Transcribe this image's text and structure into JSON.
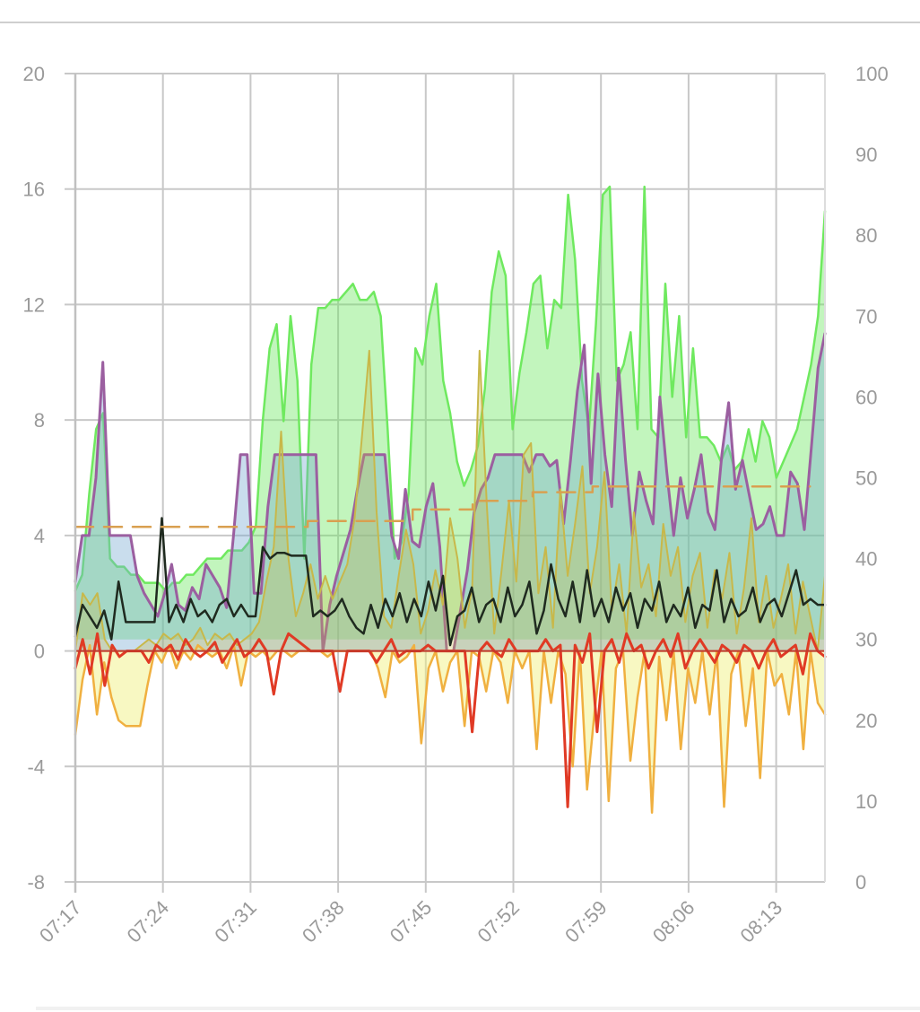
{
  "chart_data": {
    "type": "area",
    "x_ticks": [
      "07:17",
      "07:24",
      "07:31",
      "07:38",
      "07:45",
      "07:52",
      "07:59",
      "08:06",
      "08:13"
    ],
    "y_left": {
      "ticks": [
        "20",
        "16",
        "12",
        "8",
        "4",
        "0",
        "-4",
        "-8"
      ],
      "ylim": [
        -8,
        20
      ]
    },
    "y_right": {
      "ticks": [
        "100",
        "90",
        "80",
        "70",
        "60",
        "50",
        "40",
        "30",
        "20",
        "10",
        "0"
      ],
      "ylim": [
        0,
        100
      ]
    },
    "grid": true,
    "legend": "none",
    "colors": {
      "green": "#66e65a",
      "purple": "#9b5fa0",
      "olive": "#c8b84a",
      "yellow": "#f2c040",
      "red": "#e03020",
      "black": "#1f2a1f",
      "dashed": "#d9a050",
      "blue": "#3344dd",
      "pink": "#e8a0a0"
    },
    "series": [
      {
        "color_key": "green",
        "axis": "right",
        "fill": true,
        "values": [
          36,
          38,
          48,
          56,
          58,
          40,
          39,
          39,
          38,
          38,
          37,
          37,
          37,
          36,
          37,
          37,
          38,
          38,
          39,
          40,
          40,
          40,
          41,
          41,
          41,
          42,
          44,
          57,
          66,
          69,
          57,
          70,
          62,
          40,
          64,
          71,
          71,
          72,
          72,
          73,
          74,
          72,
          72,
          73,
          70,
          56,
          40,
          42,
          48,
          66,
          64,
          70,
          74,
          62,
          58,
          52,
          49,
          51,
          54,
          61,
          73,
          78,
          75,
          56,
          63,
          68,
          74,
          75,
          66,
          72,
          71,
          85,
          77,
          62,
          56,
          69,
          85,
          86,
          62,
          64,
          68,
          56,
          86,
          56,
          55,
          74,
          60,
          70,
          55,
          66,
          55,
          55,
          54,
          52,
          54,
          51,
          52,
          56,
          52,
          57,
          55,
          50,
          52,
          54,
          56,
          60,
          64,
          70,
          83
        ],
        "breaks": true
      },
      {
        "color_key": "purple",
        "axis": "left",
        "fill": true,
        "values": [
          2.4,
          4.0,
          4.0,
          6.0,
          10.0,
          4.0,
          4.0,
          4.0,
          4.0,
          2.6,
          2.0,
          1.6,
          1.2,
          2.0,
          3.0,
          1.6,
          1.4,
          2.2,
          1.8,
          3.0,
          2.6,
          2.2,
          1.5,
          4.0,
          6.8,
          6.8,
          2.0,
          2.0,
          5.0,
          6.8,
          6.8,
          6.8,
          6.8,
          6.8,
          6.8,
          6.8,
          0.0,
          1.6,
          2.6,
          3.4,
          4.2,
          5.6,
          6.8,
          6.8,
          6.8,
          6.8,
          4.0,
          3.2,
          5.6,
          3.8,
          3.6,
          5.0,
          5.8,
          3.6,
          0.0,
          0.0,
          1.4,
          2.8,
          4.8,
          5.6,
          6.0,
          6.8,
          6.8,
          6.8,
          6.8,
          6.8,
          6.2,
          6.8,
          6.8,
          6.4,
          6.6,
          4.4,
          6.6,
          9.0,
          10.6,
          5.8,
          9.6,
          6.8,
          5.0,
          9.8,
          6.6,
          4.0,
          6.2,
          5.2,
          4.4,
          8.8,
          6.2,
          4.0,
          6.0,
          4.6,
          5.6,
          6.8,
          4.8,
          4.2,
          6.8,
          8.6,
          5.6,
          6.6,
          5.4,
          4.2,
          4.4,
          5.0,
          4.0,
          4.0,
          6.2,
          5.8,
          4.2,
          7.0,
          9.8,
          11.0
        ],
        "breaks": true
      },
      {
        "color_key": "olive",
        "axis": "left",
        "fill": true,
        "values": [
          0.0,
          2.0,
          1.6,
          2.0,
          0.4,
          0.0,
          0.0,
          0.0,
          0.0,
          0.2,
          0.4,
          0.2,
          0.6,
          0.4,
          0.6,
          0.2,
          0.4,
          0.8,
          0.2,
          0.6,
          0.4,
          0.6,
          0.2,
          0.4,
          0.6,
          1.0,
          2.4,
          3.6,
          7.6,
          3.2,
          1.2,
          2.0,
          3.0,
          1.8,
          2.6,
          1.8,
          2.4,
          3.0,
          4.6,
          7.4,
          10.4,
          4.8,
          1.2,
          0.8,
          2.6,
          4.2,
          3.0,
          0.6,
          1.4,
          2.8,
          1.6,
          4.6,
          3.2,
          0.8,
          2.2,
          10.4,
          5.0,
          0.6,
          2.8,
          5.2,
          2.4,
          6.8,
          7.2,
          2.0,
          3.6,
          0.8,
          5.6,
          2.6,
          4.4,
          6.4,
          2.0,
          3.6,
          6.2,
          1.4,
          3.0,
          0.6,
          4.8,
          2.2,
          3.0,
          1.2,
          4.4,
          2.6,
          3.6,
          1.0,
          2.6,
          3.4,
          0.8,
          2.8,
          1.8,
          3.4,
          0.6,
          2.2,
          4.6,
          1.0,
          2.6,
          0.8,
          1.8,
          3.0,
          0.6,
          2.4,
          1.2,
          0.0,
          2.6
        ],
        "breaks": true
      },
      {
        "color_key": "yellow",
        "axis": "left",
        "fill": true,
        "values": [
          -2.9,
          -1.0,
          0.2,
          -2.2,
          -0.4,
          -1.6,
          -2.4,
          -2.6,
          -2.6,
          -2.6,
          -1.2,
          0.0,
          -0.4,
          0.2,
          -0.6,
          0.0,
          -0.3,
          0.2,
          0.0,
          -0.2,
          0.0,
          -0.6,
          0.2,
          -1.2,
          0.0,
          -0.2,
          0.0,
          -0.3,
          0.0,
          0.0,
          -0.2,
          0.0,
          0.0,
          0.0,
          0.0,
          -0.2,
          0.0,
          0.0,
          0.0,
          0.0,
          0.0,
          0.0,
          -0.6,
          -1.6,
          0.0,
          -0.4,
          -0.2,
          0.2,
          -3.2,
          -0.6,
          0.0,
          -1.4,
          -0.4,
          0.0,
          -2.6,
          0.0,
          -0.2,
          -1.4,
          0.0,
          -0.4,
          -1.8,
          0.0,
          -0.6,
          0.0,
          -3.4,
          0.0,
          -1.8,
          0.0,
          -0.8,
          -4.0,
          0.0,
          -4.8,
          -2.2,
          0.0,
          -5.2,
          -0.6,
          0.0,
          -3.8,
          -1.6,
          0.0,
          -5.6,
          -0.2,
          -2.4,
          0.0,
          -3.4,
          -0.6,
          -1.8,
          0.0,
          -2.2,
          0.0,
          -5.4,
          -0.8,
          0.0,
          -2.6,
          -0.6,
          -4.4,
          0.0,
          -1.2,
          -0.8,
          -2.2,
          0.0,
          -3.4,
          0.0,
          -1.8,
          -2.2
        ],
        "breaks": true
      },
      {
        "color_key": "red",
        "axis": "left",
        "fill": false,
        "values": [
          -0.6,
          0.4,
          -0.8,
          0.6,
          -1.2,
          0.2,
          -0.2,
          0.0,
          0.0,
          0.0,
          -0.4,
          0.2,
          0.0,
          0.2,
          -0.3,
          0.4,
          0.0,
          -0.2,
          0.0,
          0.3,
          -0.4,
          0.0,
          0.4,
          -0.2,
          0.0,
          0.4,
          0.0,
          -1.5,
          0.0,
          0.6,
          0.4,
          0.2,
          0.0,
          0.0,
          0.0,
          0.0,
          -1.4,
          0.0,
          0.0,
          0.0,
          0.0,
          -0.4,
          0.0,
          0.4,
          -0.2,
          0.0,
          0.0,
          0.0,
          0.2,
          0.0,
          0.0,
          0.0,
          0.0,
          0.0,
          -2.8,
          0.0,
          0.3,
          0.0,
          -0.2,
          0.4,
          0.0,
          0.0,
          0.0,
          0.0,
          0.4,
          0.0,
          0.2,
          -5.4,
          0.2,
          -0.4,
          0.6,
          -2.8,
          0.0,
          0.4,
          -0.4,
          0.6,
          0.0,
          0.2,
          -0.6,
          0.0,
          0.4,
          -0.2,
          0.6,
          -0.6,
          0.0,
          0.4,
          0.0,
          -0.4,
          0.2,
          0.0,
          -0.4,
          0.2,
          0.0,
          -0.6,
          0.0,
          0.4,
          -0.2,
          0.0,
          0.2,
          -0.8,
          0.6,
          0.0,
          -0.2
        ],
        "breaks": true
      },
      {
        "color_key": "black",
        "axis": "left",
        "fill": false,
        "values": [
          0.5,
          1.6,
          1.2,
          0.8,
          1.4,
          0.4,
          2.4,
          1.0,
          1.0,
          1.0,
          1.0,
          1.0,
          4.6,
          1.0,
          1.6,
          1.0,
          1.8,
          1.2,
          1.4,
          1.0,
          1.6,
          1.8,
          1.2,
          1.6,
          1.2,
          1.2,
          3.6,
          3.2,
          3.4,
          3.4,
          3.3,
          3.3,
          3.3,
          1.2,
          1.4,
          1.2,
          1.4,
          1.8,
          1.2,
          0.8,
          0.6,
          1.6,
          0.8,
          1.8,
          1.2,
          2.0,
          1.0,
          1.8,
          1.2,
          2.4,
          1.4,
          2.6,
          0.2,
          1.2,
          1.4,
          2.2,
          1.0,
          1.6,
          1.8,
          1.0,
          2.2,
          1.2,
          1.6,
          2.4,
          0.6,
          1.4,
          3.0,
          1.8,
          1.2,
          2.4,
          1.0,
          2.8,
          1.2,
          1.8,
          1.0,
          2.2,
          1.4,
          2.0,
          0.8,
          1.8,
          1.4,
          2.4,
          1.0,
          1.6,
          1.2,
          2.2,
          0.8,
          1.6,
          1.4,
          2.8,
          1.0,
          1.8,
          1.2,
          1.4,
          2.2,
          1.0,
          1.6,
          1.8,
          1.2,
          2.0,
          2.8,
          1.6,
          1.8,
          1.6,
          1.6
        ],
        "breaks": true
      },
      {
        "color_key": "dashed",
        "axis": "left",
        "fill": false,
        "dashed": true,
        "points": [
          [
            0,
            4.3
          ],
          [
            0.31,
            4.3
          ],
          [
            0.31,
            4.5
          ],
          [
            0.45,
            4.5
          ],
          [
            0.45,
            4.9
          ],
          [
            0.53,
            4.9
          ],
          [
            0.53,
            5.2
          ],
          [
            0.61,
            5.2
          ],
          [
            0.61,
            5.5
          ],
          [
            0.69,
            5.5
          ],
          [
            0.69,
            5.7
          ],
          [
            0.98,
            5.7
          ]
        ]
      }
    ]
  }
}
